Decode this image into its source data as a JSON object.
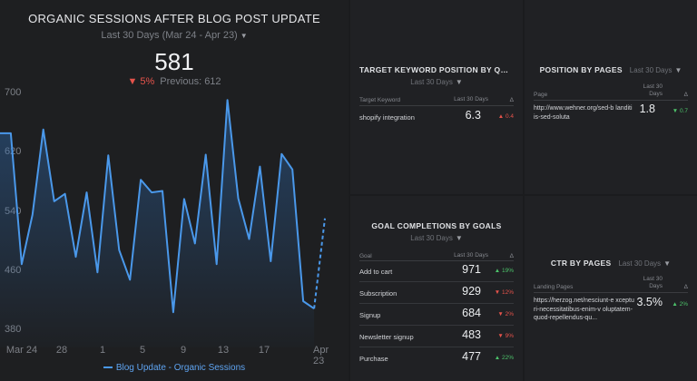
{
  "main": {
    "title": "ORGANIC SESSIONS AFTER BLOG POST UPDATE",
    "range": "Last 30 Days (Mar 24 - Apr 23)",
    "value": "581",
    "delta": "▼ 5%",
    "previous": "Previous: 612",
    "y_ticks": [
      "700",
      "620",
      "540",
      "460",
      "380"
    ],
    "x_ticks": [
      "Mar 24",
      "28",
      "1",
      "5",
      "9",
      "13",
      "17",
      "Apr 23"
    ],
    "legend": "Blog Update - Organic Sessions",
    "line_color": "#4a98ea"
  },
  "chart_data": {
    "type": "line",
    "ylim": [
      380,
      700
    ],
    "x": [
      "Mar 24",
      "Mar 25",
      "Mar 26",
      "Mar 27",
      "Mar 28",
      "Mar 29",
      "Mar 30",
      "Mar 31",
      "Apr 1",
      "Apr 2",
      "Apr 3",
      "Apr 4",
      "Apr 5",
      "Apr 6",
      "Apr 7",
      "Apr 8",
      "Apr 9",
      "Apr 10",
      "Apr 11",
      "Apr 12",
      "Apr 13",
      "Apr 14",
      "Apr 15",
      "Apr 16",
      "Apr 17",
      "Apr 18",
      "Apr 19",
      "Apr 20",
      "Apr 21",
      "Apr 22",
      "Apr 23"
    ],
    "series": [
      {
        "name": "Blog Update - Organic Sessions",
        "values": [
          645,
          645,
          468,
          535,
          650,
          553,
          563,
          478,
          565,
          457,
          615,
          487,
          447,
          582,
          565,
          567,
          403,
          556,
          496,
          616,
          468,
          690,
          557,
          502,
          600,
          472,
          617,
          596,
          418,
          408,
          530
        ],
        "projected_from_index": 29
      }
    ]
  },
  "keyword": {
    "title": "TARGET KEYWORD POSITION BY QUERI...",
    "range": "Last 30 Days",
    "col1": "Target Keyword",
    "col2": "Last 30 Days",
    "col3": "Δ",
    "rows": [
      {
        "name": "shopify integration",
        "value": "6.3",
        "change": "▲ 0.4"
      }
    ]
  },
  "pages": {
    "title": "POSITION BY PAGES",
    "range": "Last 30 Days",
    "col1": "Page",
    "col2": "Last 30 Days",
    "col3": "Δ",
    "rows": [
      {
        "url": "http://www.wehner.org/sed-b landitiis-sed-soluta",
        "value": "1.8",
        "change": "▼ 0.7"
      }
    ]
  },
  "goals": {
    "title": "GOAL COMPLETIONS BY GOALS",
    "range": "Last 30 Days",
    "col1": "Goal",
    "col2": "Last 30 Days",
    "col3": "Δ",
    "rows": [
      {
        "name": "Add to cart",
        "value": "971",
        "change": "▲ 19%",
        "dir": "up"
      },
      {
        "name": "Subscription",
        "value": "929",
        "change": "▼ 12%",
        "dir": "down"
      },
      {
        "name": "Signup",
        "value": "684",
        "change": "▼ 2%",
        "dir": "down"
      },
      {
        "name": "Newsletter signup",
        "value": "483",
        "change": "▼ 9%",
        "dir": "down"
      },
      {
        "name": "Purchase",
        "value": "477",
        "change": "▲ 22%",
        "dir": "up"
      }
    ]
  },
  "ctr": {
    "title": "CTR BY PAGES",
    "range": "Last 30 Days",
    "col1": "Landing Pages",
    "col2": "Last 30 Days",
    "col3": "Δ",
    "rows": [
      {
        "url": "https://herzog.net/nesciunt-e xcepturi-necessitatibus-enim-v oluptatem-quod-repellendus-qu...",
        "value": "3.5%",
        "change": "▲ 2%"
      }
    ]
  }
}
